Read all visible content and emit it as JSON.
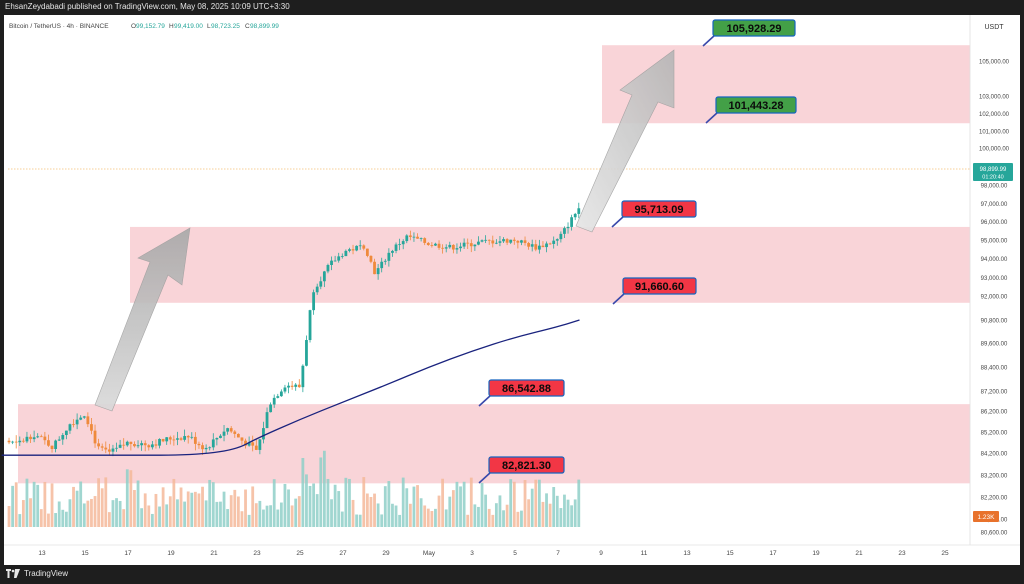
{
  "header": {
    "published_text": "EhsanZeydabadi published on TradingView.com, May 08, 2025 10:09 UTC+3:30"
  },
  "footer": {
    "brand": "TradingView"
  },
  "legend": {
    "symbol": "Bitcoin / TetherUS · 4h · BINANCE",
    "open_label": "O",
    "open_value": "99,152.79",
    "high_label": "H",
    "high_value": "99,419.00",
    "low_label": "L",
    "low_value": "98,723.25",
    "close_label": "C",
    "close_value": "98,899.99"
  },
  "colors": {
    "up": "#26a69a",
    "down": "#ef8a3c",
    "zone": "#f7c6cb",
    "ma": "#1a237e",
    "label_red": "#f23645",
    "label_green": "#43a047",
    "arrow": "#bfbfbf"
  },
  "chart_data": {
    "type": "candlestick",
    "symbol": "Bitcoin / TetherUS",
    "interval": "4h",
    "exchange": "BINANCE",
    "currency": "USDT",
    "ylim": [
      80000,
      107000
    ],
    "y_scale": "piecewise",
    "y_ticks": [
      "105,000.00",
      "103,000.00",
      "102,000.00",
      "101,000.00",
      "100,000.00",
      "98,000.00",
      "97,000.00",
      "96,000.00",
      "95,000.00",
      "94,000.00",
      "93,000.00",
      "92,000.00",
      "90,800.00",
      "89,600.00",
      "88,400.00",
      "87,200.00",
      "86,200.00",
      "85,200.00",
      "84,200.00",
      "83,200.00",
      "82,200.00",
      "81,200.00",
      "80,600.00"
    ],
    "x_ticks": [
      "13",
      "15",
      "17",
      "19",
      "21",
      "23",
      "25",
      "27",
      "29",
      "May",
      "3",
      "5",
      "7",
      "9",
      "11",
      "13",
      "15",
      "17",
      "19",
      "21",
      "23",
      "25"
    ],
    "last_price": "98,899.99",
    "last_price_timer": "01:20:40",
    "volume_label": "1.23K",
    "ohlc": {
      "open": 99152.79,
      "high": 99419.0,
      "low": 98723.25,
      "close": 98899.99
    },
    "price_levels": [
      {
        "value": 105928.29,
        "label": "105,928.29",
        "style": "green"
      },
      {
        "value": 101443.28,
        "label": "101,443.28",
        "style": "green"
      },
      {
        "value": 95713.09,
        "label": "95,713.09",
        "style": "red"
      },
      {
        "value": 91660.6,
        "label": "91,660.60",
        "style": "red"
      },
      {
        "value": 86542.88,
        "label": "86,542.88",
        "style": "red"
      },
      {
        "value": 82821.3,
        "label": "82,821.30",
        "style": "red"
      }
    ],
    "zones": [
      {
        "name": "target-zone",
        "from": 101443.28,
        "to": 105928.29
      },
      {
        "name": "resistance-zone",
        "from": 91660.6,
        "to": 95713.09
      },
      {
        "name": "support-zone",
        "from": 82821.3,
        "to": 86542.88
      }
    ],
    "moving_average": {
      "points": [
        {
          "date": "Apr 11",
          "value": 84100
        },
        {
          "date": "Apr 14",
          "value": 84100
        },
        {
          "date": "Apr 17",
          "value": 84100
        },
        {
          "date": "Apr 20",
          "value": 84100
        },
        {
          "date": "Apr 22",
          "value": 84350
        },
        {
          "date": "Apr 23",
          "value": 84900
        },
        {
          "date": "Apr 25",
          "value": 85800
        },
        {
          "date": "Apr 27",
          "value": 86650
        },
        {
          "date": "Apr 29",
          "value": 87500
        },
        {
          "date": "May 1",
          "value": 88400
        },
        {
          "date": "May 3",
          "value": 89200
        },
        {
          "date": "May 5",
          "value": 89900
        },
        {
          "date": "May 7",
          "value": 90450
        },
        {
          "date": "May 8",
          "value": 90800
        }
      ]
    }
  }
}
